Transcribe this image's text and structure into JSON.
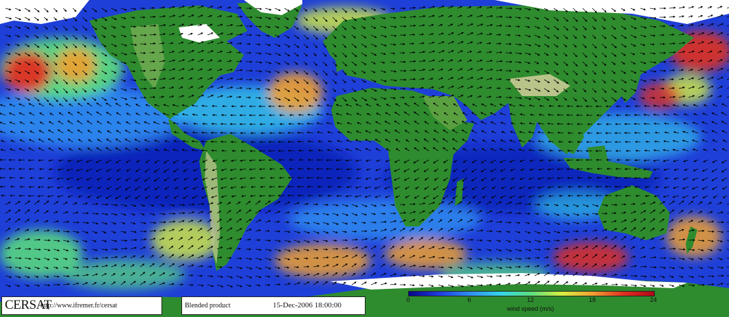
{
  "map": {
    "logo": "CERSAT",
    "url": "http://www.ifremer.fr/cersat",
    "product": "Blended product",
    "datetime": "15-Dec-2006 18:00:00",
    "colorbar": {
      "title": "wind speed (m/s)",
      "ticks": [
        "0",
        "6",
        "12",
        "18",
        "24"
      ],
      "colors": [
        "#06068a",
        "#1f3ce0",
        "#2f8ff0",
        "#34d6e8",
        "#5ce07a",
        "#d8f040",
        "#f0a030",
        "#e03020",
        "#b00818"
      ]
    },
    "palette": {
      "ocean": "#1e3fd8",
      "land_low": "#2e8b2e",
      "land_high": "#b9c48a",
      "ice": "#ffffff"
    }
  }
}
